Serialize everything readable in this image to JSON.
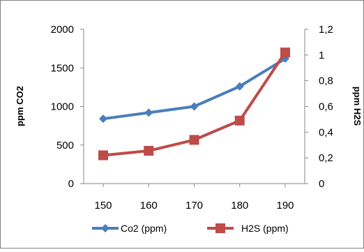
{
  "chart_data": {
    "type": "line",
    "x": [
      150,
      160,
      170,
      180,
      190
    ],
    "series": [
      {
        "name": "Co2 (ppm)",
        "axis": "left",
        "color": "#4A7EBB",
        "marker": "diamond",
        "values": [
          840,
          920,
          1000,
          1260,
          1620
        ]
      },
      {
        "name": "H2S (ppm)",
        "axis": "right",
        "color": "#BE4B48",
        "marker": "square",
        "values": [
          0.22,
          0.255,
          0.34,
          0.49,
          1.02
        ]
      }
    ],
    "ylabel_left": "ppm CO2",
    "ylabel_right": "ppm H2S",
    "ylim_left": [
      0,
      2000
    ],
    "ylim_right": [
      0,
      1.2
    ],
    "yticks_left": [
      "0",
      "500",
      "1000",
      "1500",
      "2000"
    ],
    "yticks_right": [
      "0",
      "0,2",
      "0,4",
      "0,6",
      "0,8",
      "1",
      "1,2"
    ],
    "xticks": [
      "150",
      "160",
      "170",
      "180",
      "190"
    ],
    "grid": false,
    "legend": "bottom"
  }
}
